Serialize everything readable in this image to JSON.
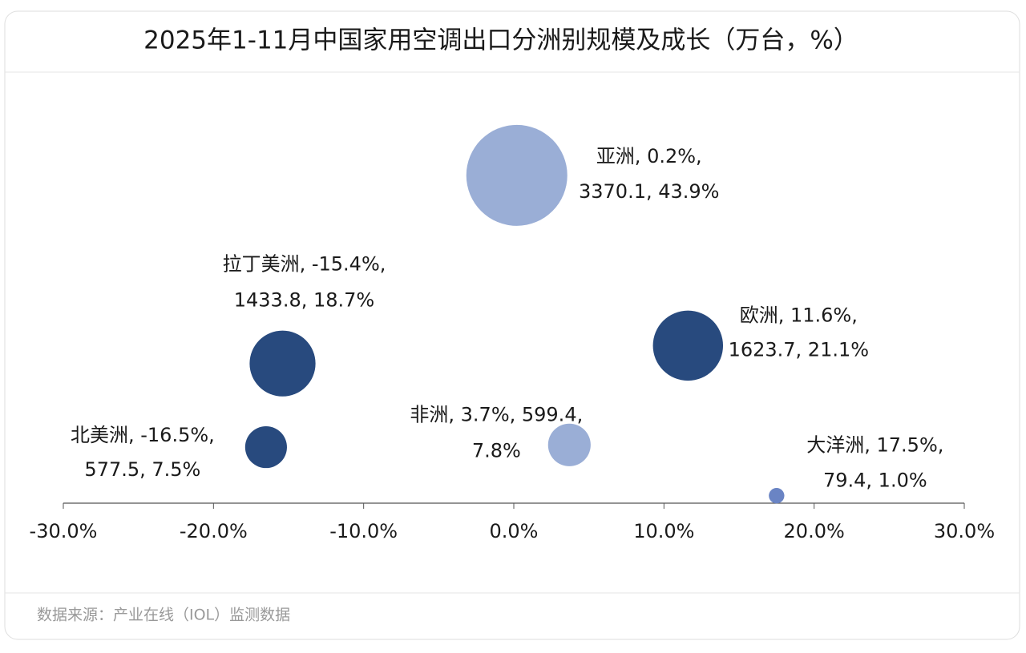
{
  "chart_data": {
    "type": "bubble",
    "title": "2025年1-11月中国家用空调出口分洲别规模及成长（万台，%）",
    "source": "数据来源：产业在线（IOL）监测数据",
    "x": [
      0.2,
      -15.4,
      11.6,
      -16.5,
      3.7,
      17.5
    ],
    "values": [
      43.9,
      18.7,
      21.1,
      7.5,
      7.8,
      1.0
    ],
    "sizes": [
      3370.1,
      1433.8,
      1623.7,
      577.5,
      599.4,
      79.4
    ],
    "point_labels": [
      [
        "亚洲, 0.2%,",
        "3370.1, 43.9%"
      ],
      [
        "拉丁美洲, -15.4%,",
        "1433.8, 18.7%"
      ],
      [
        "欧洲, 11.6%,",
        "1623.7, 21.1%"
      ],
      [
        "北美洲, -16.5%,",
        "577.5, 7.5%"
      ],
      [
        "非洲, 3.7%, 599.4,",
        "7.8%"
      ],
      [
        "大洋洲, 17.5%,",
        "79.4, 1.0%"
      ]
    ],
    "colors": [
      "#9aaed6",
      "#284a7e",
      "#284a7e",
      "#284a7e",
      "#9aaed6",
      "#6a84c4"
    ],
    "xlim": [
      -30,
      30
    ],
    "xticks": [
      {
        "value": -30,
        "label": "-30.0%"
      },
      {
        "value": -20,
        "label": "-20.0%"
      },
      {
        "value": -10,
        "label": "-10.0%"
      },
      {
        "value": 0,
        "label": "0.0%"
      },
      {
        "value": 10,
        "label": "10.0%"
      },
      {
        "value": 20,
        "label": "20.0%"
      },
      {
        "value": 30,
        "label": "30.0%"
      }
    ],
    "ylim": [
      0,
      55
    ]
  }
}
